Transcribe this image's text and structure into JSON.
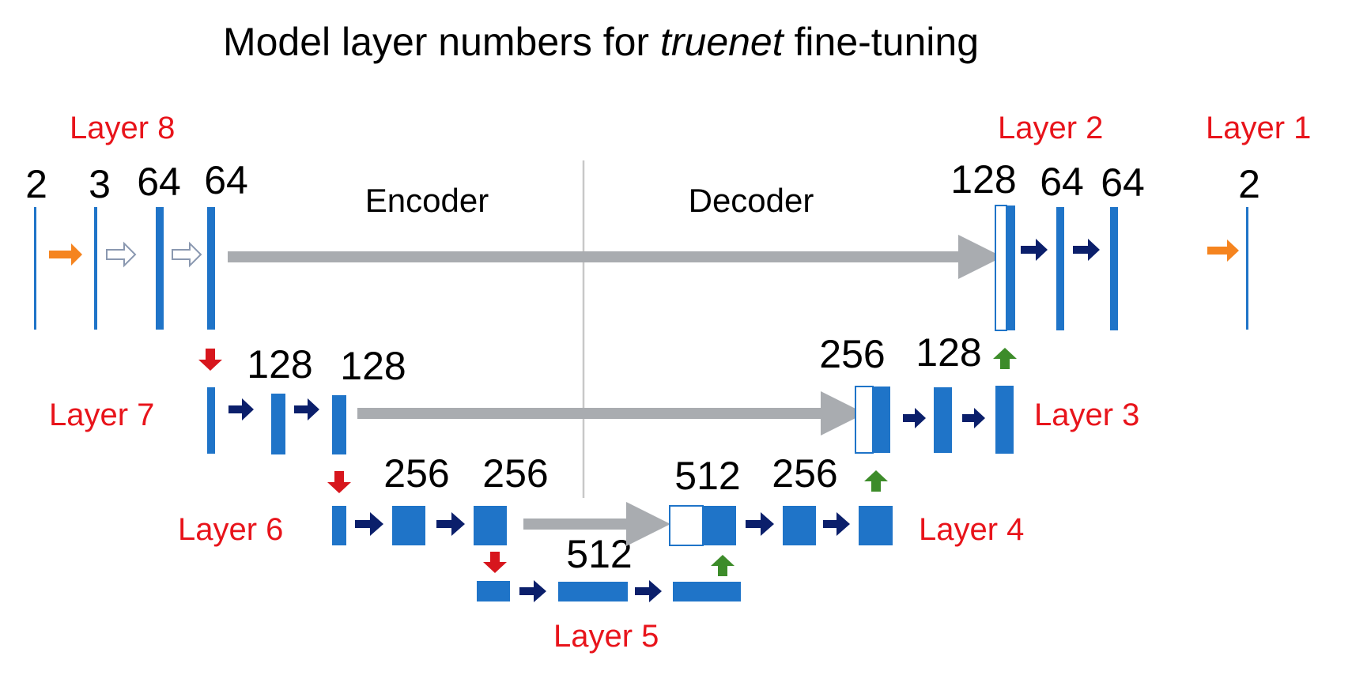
{
  "title": {
    "prefix": "Model layer numbers for ",
    "emphasis": "truenet",
    "suffix": " fine-tuning"
  },
  "sections": {
    "encoder": "Encoder",
    "decoder": "Decoder"
  },
  "layers": {
    "l1": "Layer 1",
    "l2": "Layer 2",
    "l3": "Layer 3",
    "l4": "Layer 4",
    "l5": "Layer 5",
    "l6": "Layer 6",
    "l7": "Layer 7",
    "l8": "Layer 8"
  },
  "channels": {
    "in_2": "2",
    "in_3": "3",
    "enc1_a": "64",
    "enc1_b": "64",
    "enc2_a": "128",
    "enc2_b": "128",
    "enc3_a": "256",
    "enc3_b": "256",
    "bottleneck": "512",
    "dec3_a": "512",
    "dec3_b": "256",
    "dec2_a": "256",
    "dec2_b": "128",
    "dec1_a": "128",
    "dec1_b": "64",
    "dec1_c": "64",
    "out_2": "2"
  },
  "colors": {
    "layer_label": "#e8141b",
    "block": "#1f74c8",
    "conv_arrow": "#0b1f6b",
    "input_arrow": "#f5841f",
    "skip_arrow": "#a9acb0",
    "pool_arrow": "#d7161d",
    "upconv_arrow": "#3d8c2a"
  }
}
